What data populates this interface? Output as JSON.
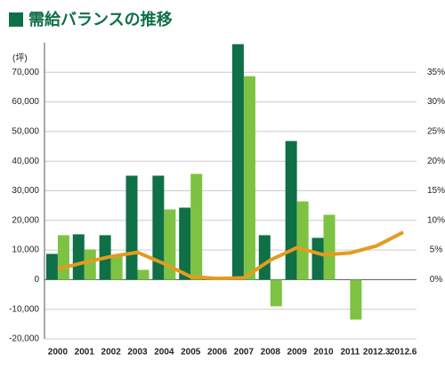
{
  "chart_data": {
    "type": "bar",
    "title": "需給バランスの推移",
    "y_unit": "(坪)",
    "categories": [
      "2000",
      "2001",
      "2002",
      "2003",
      "2004",
      "2005",
      "2006",
      "2007",
      "2008",
      "2009",
      "2010",
      "2011",
      "2012.3",
      "2012.6"
    ],
    "series": [
      {
        "color": "#0f6f47",
        "values": [
          8700,
          15300,
          15000,
          35100,
          35100,
          24300,
          0,
          79500,
          15000,
          46800,
          14100,
          0,
          null,
          null
        ]
      },
      {
        "color": "#7dc242",
        "values": [
          15000,
          10200,
          8400,
          3300,
          23700,
          35700,
          0,
          68700,
          -9000,
          26400,
          21900,
          -13500,
          null,
          null
        ]
      },
      {
        "type": "line",
        "axis": "y2",
        "color": "#e49b1f",
        "values": [
          1.8,
          2.9,
          3.9,
          4.6,
          2.7,
          0.5,
          0.2,
          0.3,
          3.3,
          5.4,
          4.2,
          4.5,
          5.7,
          8.0
        ]
      }
    ],
    "ylim": [
      -20000,
      80000
    ],
    "yticks": [
      {
        "value": -20000,
        "label": "-20,000"
      },
      {
        "value": -10000,
        "label": "-10,000"
      },
      0,
      {
        "value": 10000,
        "label": "10,000"
      },
      {
        "value": 20000,
        "label": "20,000"
      },
      {
        "value": 30000,
        "label": "30,000"
      },
      {
        "value": 40000,
        "label": "40,000"
      },
      {
        "value": 50000,
        "label": "50,000"
      },
      {
        "value": 60000,
        "label": "60,000"
      },
      {
        "value": 70000,
        "label": "70,000"
      }
    ],
    "y2lim": [
      -10,
      40
    ],
    "y2ticks": [
      {
        "value": 0,
        "label": "0%"
      },
      {
        "value": 5,
        "label": "5%"
      },
      {
        "value": 10,
        "label": "10%"
      },
      {
        "value": 15,
        "label": "15%"
      },
      {
        "value": 20,
        "label": "20%"
      },
      {
        "value": 25,
        "label": "25%"
      },
      {
        "value": 30,
        "label": "30%"
      },
      {
        "value": 35,
        "label": "35%"
      }
    ],
    "grid": true
  }
}
